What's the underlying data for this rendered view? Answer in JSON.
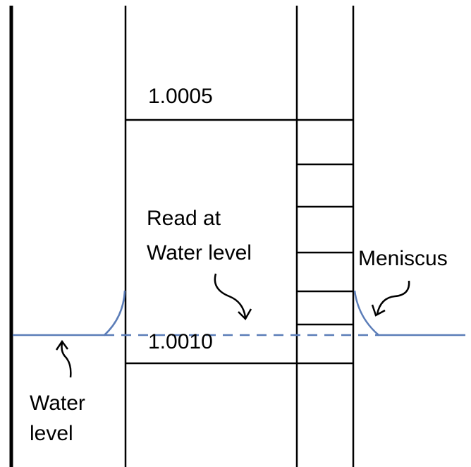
{
  "labels": {
    "top_reading": "1.0005",
    "bottom_reading": "1.0010",
    "read_line1": "Read at",
    "read_line2": "Water level",
    "meniscus": "Meniscus",
    "water_line1": "Water",
    "water_line2": "level"
  }
}
